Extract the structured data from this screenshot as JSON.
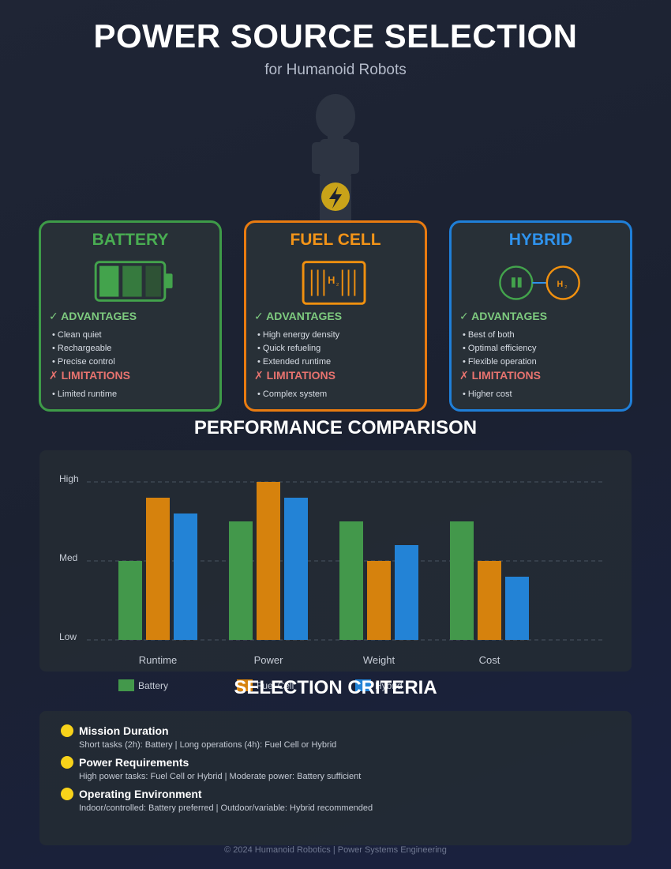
{
  "header": {
    "title": "POWER SOURCE SELECTION",
    "subtitle": "for Humanoid Robots"
  },
  "robot": {
    "icon": "lightning-bolt-icon",
    "badge_color": "#c9a319"
  },
  "cards": [
    {
      "key": "battery",
      "title": "BATTERY",
      "icon": "battery-icon",
      "color": "#3e9b48",
      "advantages_heading": "✓ ADVANTAGES",
      "advantages": [
        "• Clean quiet",
        "• Rechargeable",
        "• Precise control"
      ],
      "limitations_heading": "✗ LIMITATIONS",
      "limitations": [
        "• Limited runtime"
      ]
    },
    {
      "key": "fuel",
      "title": "FUEL CELL",
      "icon": "fuel-cell-icon",
      "icon_text": "H",
      "icon_subscript": "2",
      "color": "#e97b10",
      "advantages_heading": "✓ ADVANTAGES",
      "advantages": [
        "• High energy density",
        "• Quick refueling",
        "• Extended runtime"
      ],
      "limitations_heading": "✗ LIMITATIONS",
      "limitations": [
        "• Complex system"
      ]
    },
    {
      "key": "hybrid",
      "title": "HYBRID",
      "icon": "hybrid-icon",
      "icon_text": "H",
      "icon_subscript": "2",
      "color": "#1f7fd8",
      "advantages_heading": "✓ ADVANTAGES",
      "advantages": [
        "• Best of both",
        "• Optimal efficiency",
        "• Flexible operation"
      ],
      "limitations_heading": "✗ LIMITATIONS",
      "limitations": [
        "• Higher cost"
      ]
    }
  ],
  "performance": {
    "title": "PERFORMANCE COMPARISON"
  },
  "chart_data": {
    "type": "bar",
    "title": "PERFORMANCE COMPARISON",
    "categories": [
      "Runtime",
      "Power",
      "Weight",
      "Cost"
    ],
    "y_ticks": [
      {
        "label": "Low",
        "value": 0
      },
      {
        "label": "Med",
        "value": 50
      },
      {
        "label": "High",
        "value": 100
      }
    ],
    "ylim": [
      0,
      100
    ],
    "grid": true,
    "legend_position": "bottom-left",
    "series": [
      {
        "name": "Battery",
        "color": "#43984b",
        "values": [
          50,
          75,
          75,
          75
        ]
      },
      {
        "name": "Fuel Cell",
        "color": "#d6820d",
        "values": [
          90,
          100,
          50,
          50
        ]
      },
      {
        "name": "Hybrid",
        "color": "#2383d6",
        "values": [
          80,
          90,
          60,
          40
        ]
      }
    ]
  },
  "criteria": {
    "title": "SELECTION CRITERIA",
    "items": [
      {
        "heading": "Mission Duration",
        "description": "Short tasks (2h): Battery | Long operations (4h): Fuel Cell or Hybrid"
      },
      {
        "heading": "Power Requirements",
        "description": "High power tasks: Fuel Cell or Hybrid | Moderate power: Battery sufficient"
      },
      {
        "heading": "Operating Environment",
        "description": "Indoor/controlled: Battery preferred | Outdoor/variable: Hybrid recommended"
      }
    ]
  },
  "footer": {
    "text": "© 2024 Humanoid Robotics | Power Systems Engineering"
  }
}
